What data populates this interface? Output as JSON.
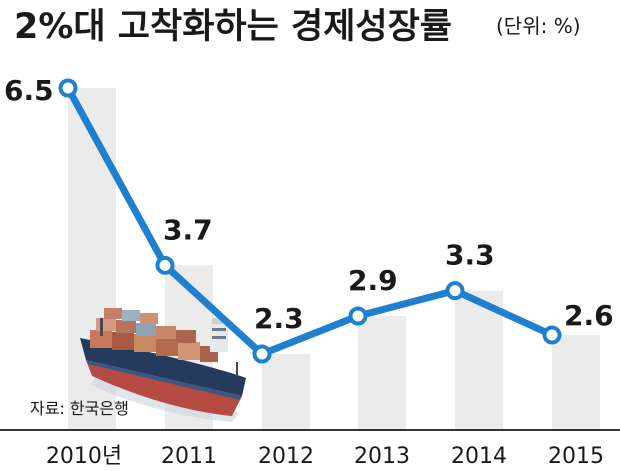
{
  "title": "2%대 고착화하는 경제성장률",
  "unit": "(단위: %)",
  "source": "자료: 한국은행",
  "colors": {
    "line": "#1f7fd0",
    "marker_fill": "#ffffff",
    "column": "#ebebeb",
    "baseline": "#333333"
  },
  "illustration": "container-ship-image",
  "chart_data": {
    "type": "line",
    "title": "2%대 고착화하는 경제성장률",
    "unit": "(단위: %)",
    "categories": [
      "2010년",
      "2011",
      "2012",
      "2013",
      "2014",
      "2015"
    ],
    "values": [
      6.5,
      3.7,
      2.3,
      2.9,
      3.3,
      2.6
    ],
    "value_labels": [
      "6.5",
      "3.7",
      "2.3",
      "2.9",
      "3.3",
      "2.6"
    ],
    "grid": false,
    "legend": "none"
  }
}
